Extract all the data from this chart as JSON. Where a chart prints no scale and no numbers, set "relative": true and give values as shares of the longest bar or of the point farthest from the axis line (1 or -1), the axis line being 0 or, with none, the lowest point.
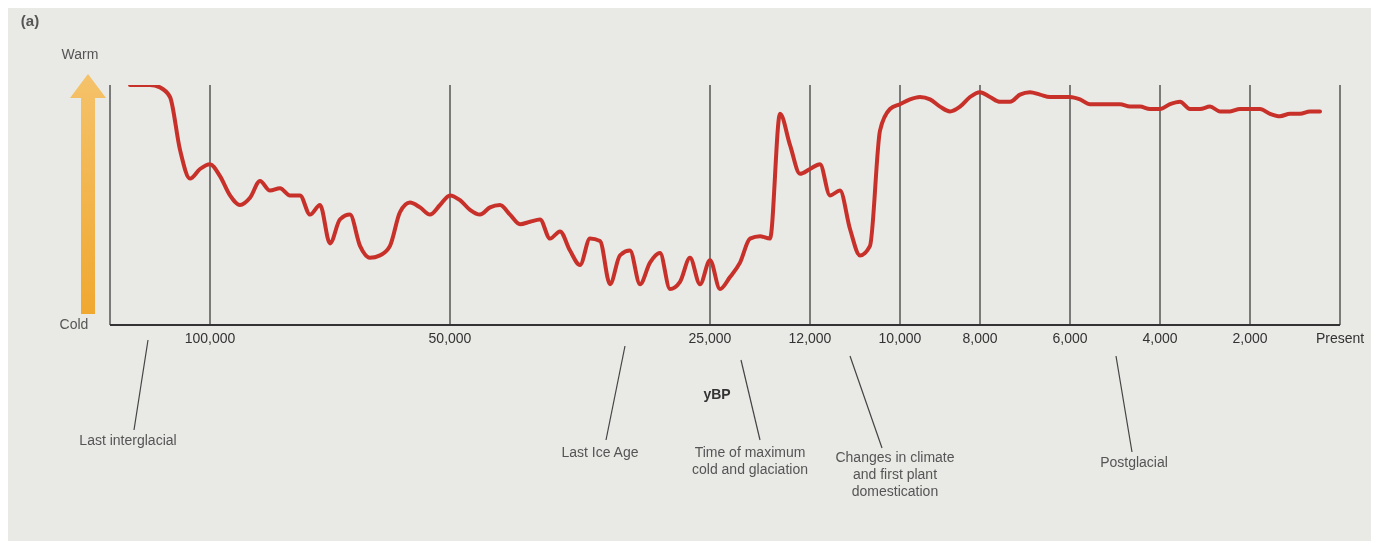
{
  "chart_data": {
    "type": "line",
    "relative": true,
    "xlabel": "yBP",
    "grid": "x",
    "marker": "none",
    "line_style": "solid",
    "annotations": [
      "(a)",
      "Warm",
      "Cold",
      "Last interglacial",
      "Last Ice Age",
      "Time of maximum cold and glaciation",
      "Changes in climate and first plant domestication",
      "Postglacial"
    ],
    "categories": [
      null,
      null,
      null,
      null,
      null,
      null,
      null,
      null,
      null,
      null,
      "100,000",
      null,
      null,
      null,
      null,
      null,
      null,
      null,
      null,
      null,
      null,
      null,
      null,
      null,
      null,
      null,
      null,
      null,
      null,
      null,
      null,
      null,
      null,
      null,
      "50,000",
      null,
      null,
      null,
      null,
      null,
      null,
      null,
      null,
      null,
      null,
      null,
      null,
      null,
      null,
      null,
      null,
      null,
      null,
      null,
      null,
      null,
      null,
      null,
      null,
      null,
      "25,000",
      null,
      null,
      null,
      null,
      null,
      null,
      null,
      null,
      null,
      "12,000",
      null,
      null,
      null,
      null,
      null,
      null,
      null,
      null,
      "10,000",
      null,
      null,
      null,
      null,
      null,
      null,
      null,
      "8,000",
      null,
      null,
      null,
      null,
      null,
      null,
      null,
      null,
      "6,000",
      null,
      null,
      null,
      null,
      null,
      null,
      null,
      null,
      "4,000",
      null,
      null,
      null,
      null,
      null,
      null,
      null,
      null,
      "2,000",
      null,
      null,
      null,
      null,
      null,
      null,
      null,
      null,
      "Present"
    ],
    "series": [
      {
        "color": "#c8312a",
        "values": [
          null,
          null,
          1.0,
          1.0,
          1.0,
          0.99,
          0.95,
          0.73,
          0.61,
          0.65,
          0.67,
          0.62,
          0.54,
          0.5,
          0.53,
          0.6,
          0.56,
          0.57,
          0.54,
          0.54,
          0.46,
          0.5,
          0.34,
          0.44,
          0.46,
          0.33,
          0.28,
          0.29,
          0.33,
          0.47,
          0.51,
          0.49,
          0.46,
          0.5,
          0.54,
          0.52,
          0.48,
          0.46,
          0.49,
          0.5,
          0.46,
          0.42,
          0.43,
          0.44,
          0.36,
          0.39,
          0.31,
          0.25,
          0.36,
          0.35,
          0.17,
          0.29,
          0.31,
          0.17,
          0.26,
          0.3,
          0.15,
          0.18,
          0.28,
          0.17,
          0.27,
          0.15,
          0.2,
          0.26,
          0.36,
          0.37,
          0.36,
          0.88,
          0.75,
          0.63,
          0.65,
          0.67,
          0.54,
          0.56,
          0.4,
          0.29,
          0.33,
          0.81,
          0.9,
          0.92,
          0.94,
          0.95,
          0.94,
          0.91,
          0.89,
          0.91,
          0.95,
          0.97,
          0.95,
          0.93,
          0.93,
          0.96,
          0.97,
          0.96,
          0.95,
          0.95,
          0.95,
          0.94,
          0.92,
          0.92,
          0.92,
          0.92,
          0.91,
          0.91,
          0.9,
          0.9,
          0.92,
          0.93,
          0.9,
          0.9,
          0.91,
          0.89,
          0.89,
          0.9,
          0.9,
          0.9,
          0.88,
          0.87,
          0.88,
          0.88,
          0.89,
          0.89,
          null,
          null
        ]
      }
    ]
  }
}
